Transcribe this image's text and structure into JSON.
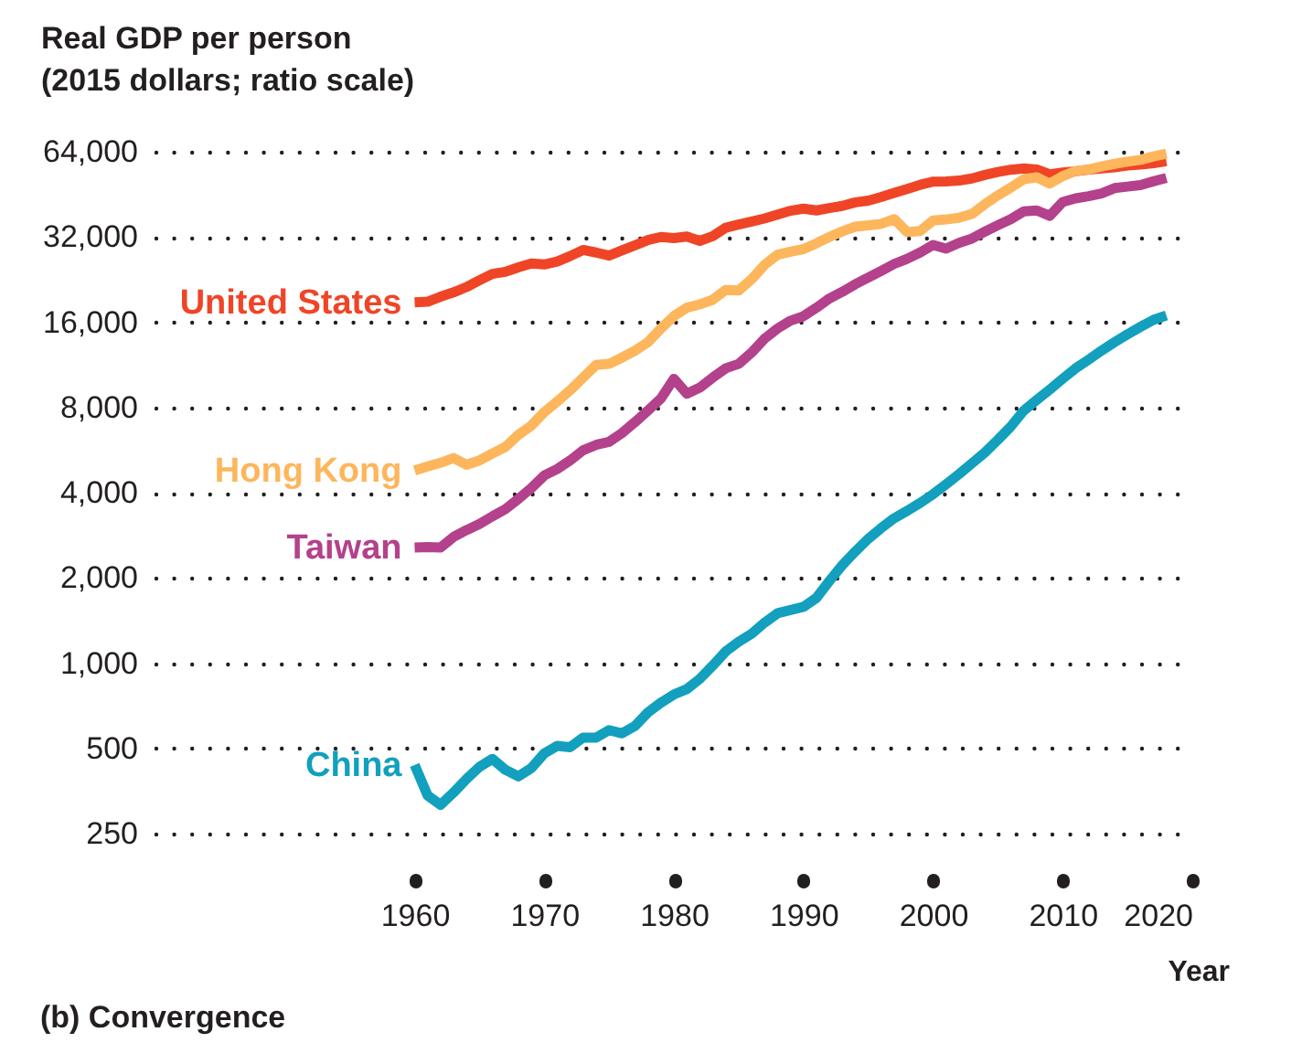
{
  "chart_data": {
    "type": "line",
    "title": "(b) Convergence",
    "xlabel": "Year",
    "ylabel": "Real GDP per person\n(2015 dollars; ratio scale)",
    "x": [
      1960,
      1961,
      1962,
      1963,
      1964,
      1965,
      1966,
      1967,
      1968,
      1969,
      1970,
      1971,
      1972,
      1973,
      1974,
      1975,
      1976,
      1977,
      1978,
      1979,
      1980,
      1981,
      1982,
      1983,
      1984,
      1985,
      1986,
      1987,
      1988,
      1989,
      1990,
      1991,
      1992,
      1993,
      1994,
      1995,
      1996,
      1997,
      1998,
      1999,
      2000,
      2001,
      2002,
      2003,
      2004,
      2005,
      2006,
      2007,
      2008,
      2009,
      2010,
      2011,
      2012,
      2013,
      2014,
      2015,
      2016,
      2017,
      2018
    ],
    "series": [
      {
        "name": "United States",
        "color": "#ef4526",
        "values": [
          18800,
          18900,
          19700,
          20400,
          21300,
          22500,
          23700,
          24100,
          25000,
          25800,
          25600,
          26200,
          27400,
          28800,
          28200,
          27500,
          28700,
          29900,
          31200,
          32000,
          31700,
          32100,
          31000,
          32200,
          34500,
          35400,
          36300,
          37200,
          38400,
          39600,
          40300,
          39700,
          40500,
          41200,
          42400,
          43000,
          44300,
          45800,
          47300,
          48900,
          50200,
          50300,
          50600,
          51500,
          53000,
          54300,
          55300,
          55900,
          55400,
          53300,
          54100,
          54600,
          55300,
          55900,
          56400,
          57200,
          57700,
          58300,
          59300
        ]
      },
      {
        "name": "Hong Kong",
        "color": "#fdb65c",
        "values": [
          4790,
          4950,
          5100,
          5300,
          5020,
          5200,
          5500,
          5800,
          6400,
          6900,
          7700,
          8400,
          9200,
          10200,
          11300,
          11400,
          12000,
          12700,
          13600,
          15200,
          16800,
          18000,
          18500,
          19200,
          20800,
          20700,
          22700,
          25500,
          27700,
          28400,
          29000,
          30400,
          32000,
          33500,
          34800,
          35200,
          35600,
          37000,
          33300,
          33600,
          36600,
          36900,
          37400,
          38600,
          41800,
          44900,
          47800,
          51200,
          52000,
          49400,
          52500,
          54700,
          55400,
          56800,
          58000,
          59000,
          59900,
          61600,
          63000
        ]
      },
      {
        "name": "Taiwan",
        "color": "#b4418b",
        "values": [
          2560,
          2570,
          2560,
          2790,
          2950,
          3100,
          3300,
          3500,
          3800,
          4150,
          4600,
          4850,
          5200,
          5650,
          5900,
          6050,
          6500,
          7100,
          7800,
          8600,
          10100,
          8950,
          9400,
          10200,
          11000,
          11400,
          12500,
          14000,
          15200,
          16200,
          16800,
          18000,
          19400,
          20500,
          21800,
          23000,
          24300,
          25700,
          26800,
          28200,
          30000,
          29100,
          30500,
          31600,
          33400,
          35200,
          37000,
          39400,
          39700,
          38000,
          42500,
          43800,
          44600,
          45600,
          47600,
          48200,
          48800,
          50300,
          51700
        ]
      },
      {
        "name": "China",
        "color": "#12a0be",
        "values": [
          437,
          341,
          316,
          349,
          390,
          430,
          459,
          420,
          398,
          426,
          480,
          510,
          505,
          546,
          546,
          580,
          565,
          600,
          670,
          725,
          775,
          810,
          880,
          980,
          1100,
          1190,
          1270,
          1390,
          1500,
          1540,
          1580,
          1700,
          1950,
          2220,
          2480,
          2750,
          3000,
          3250,
          3450,
          3680,
          3950,
          4280,
          4650,
          5080,
          5550,
          6150,
          6850,
          7800,
          8500,
          9250,
          10100,
          11000,
          11800,
          12700,
          13600,
          14500,
          15400,
          16300,
          16900
        ]
      }
    ],
    "xlim": [
      1940,
      2020
    ],
    "xticks": [
      1960,
      1970,
      1980,
      1990,
      2000,
      2010,
      2020
    ],
    "ylim": [
      250,
      64000
    ],
    "yticks": [
      250,
      500,
      {
        "value": 1000,
        "label": "1,000"
      },
      {
        "value": 2000,
        "label": "2,000"
      },
      {
        "value": 4000,
        "label": "4,000"
      },
      {
        "value": 8000,
        "label": "8,000"
      },
      {
        "value": 16000,
        "label": "16,000"
      },
      {
        "value": 32000,
        "label": "32,000"
      },
      {
        "value": 64000,
        "label": "64,000"
      }
    ],
    "log": true,
    "grid": "y"
  }
}
